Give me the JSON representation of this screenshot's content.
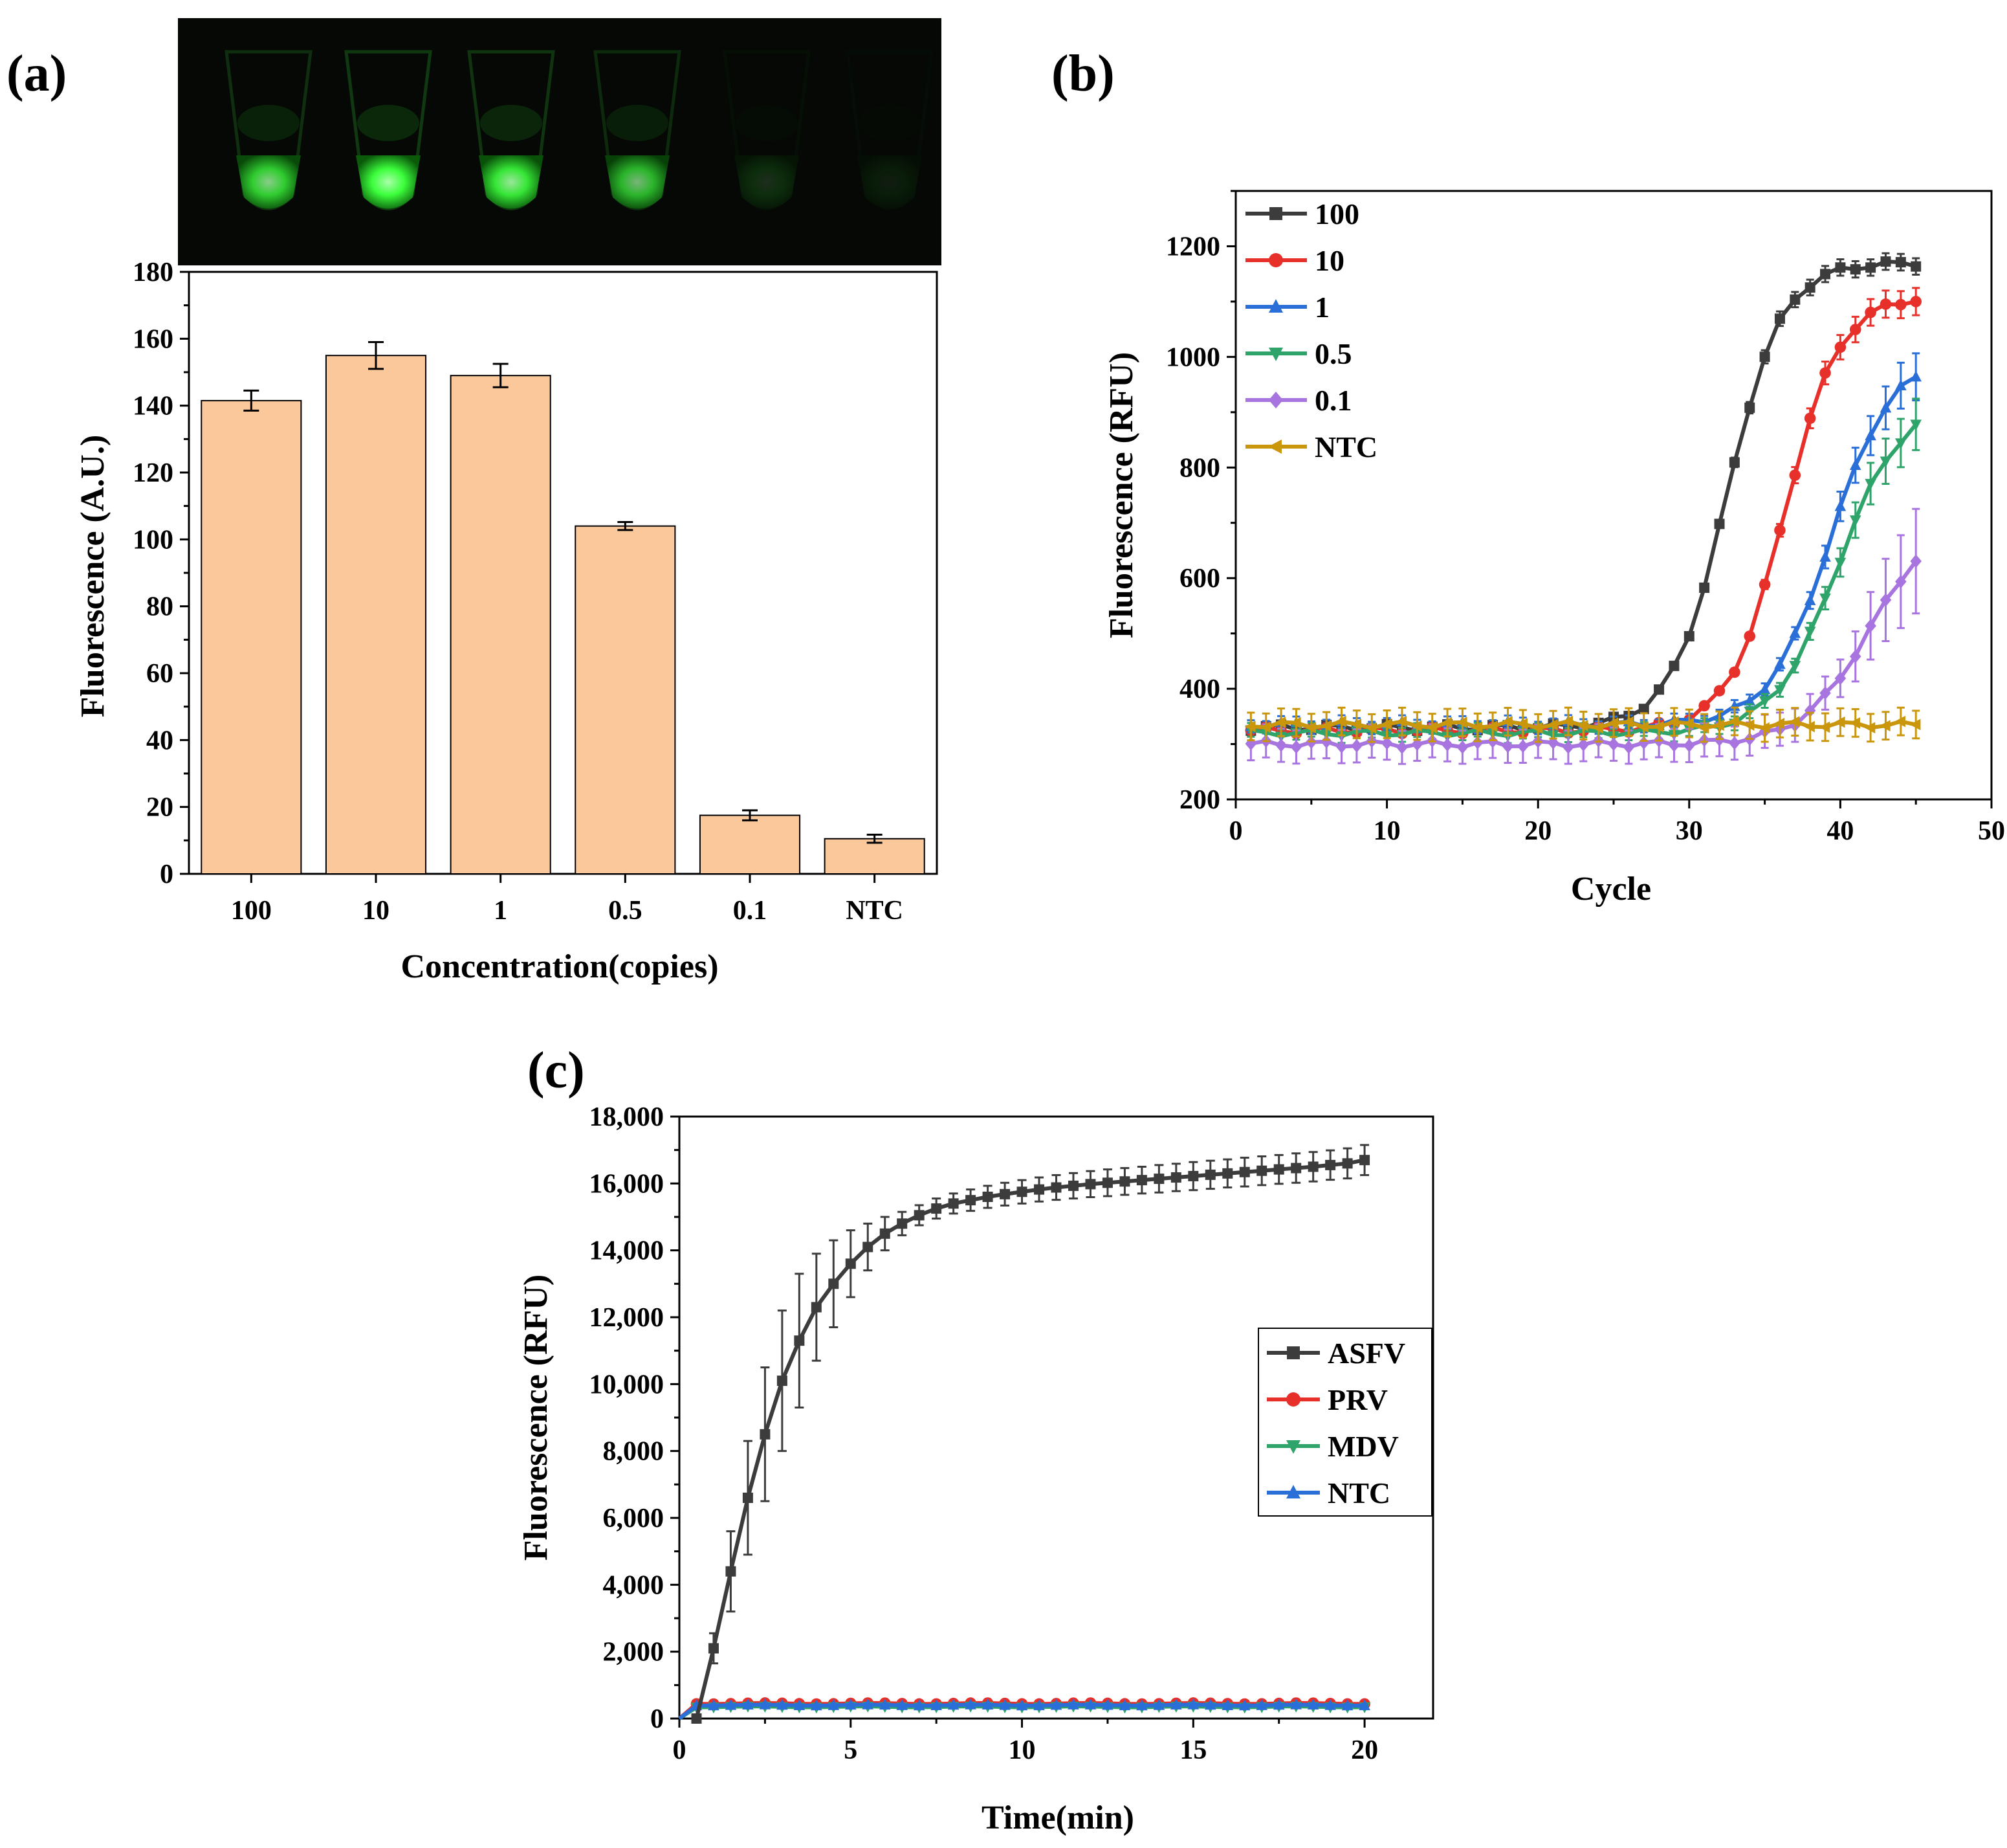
{
  "colors": {
    "bar_fill": "#fac89b",
    "s100": "#3c3c3c",
    "s10": "#e8302a",
    "s1": "#2a6fd8",
    "s05": "#2fa46a",
    "s01": "#a874e0",
    "sNTC": "#c9960c",
    "tube_glow": "#3cff3c"
  },
  "chart_data": [
    {
      "panel": "(a)",
      "type": "bar",
      "inset_image": "fluorescence-tubes-photo",
      "tube_brightness": [
        0.8,
        1.0,
        0.9,
        0.7,
        0.15,
        0.06
      ],
      "categories": [
        "100",
        "10",
        "1",
        "0.5",
        "0.1",
        "NTC"
      ],
      "values": [
        141.5,
        155,
        149,
        104,
        17.5,
        10.5
      ],
      "errors": [
        3,
        4,
        3.5,
        1.2,
        1.5,
        1.2
      ],
      "xlabel": "Concentration(copies)",
      "ylabel": "Fluorescence (A.U.)",
      "ylim": [
        0,
        180
      ],
      "yticks": [
        "0",
        "20",
        "40",
        "60",
        "80",
        "100",
        "120",
        "140",
        "160",
        "180"
      ]
    },
    {
      "panel": "(b)",
      "type": "line",
      "xlabel": "Cycle",
      "ylabel": "Fluorescence (RFU)",
      "xlim": [
        0,
        50
      ],
      "ylim": [
        200,
        1300
      ],
      "xticks": [
        "0",
        "10",
        "20",
        "30",
        "40",
        "50"
      ],
      "yticks": [
        "200",
        "400",
        "600",
        "800",
        "1000",
        "1200"
      ],
      "legend_position": "top-left",
      "series": [
        {
          "name": "100",
          "color_key": "s100",
          "marker": "square",
          "baseline": 330,
          "plateau": 1170,
          "midpoint": 32.5,
          "steepness": 0.55,
          "error": 15
        },
        {
          "name": "10",
          "color_key": "s10",
          "marker": "circle",
          "baseline": 325,
          "plateau": 1110,
          "midpoint": 36.3,
          "steepness": 0.55,
          "error": 25
        },
        {
          "name": "1",
          "color_key": "s1",
          "marker": "triangle-up",
          "baseline": 335,
          "plateau": 1000,
          "midpoint": 39.3,
          "steepness": 0.5,
          "error": 45
        },
        {
          "name": "0.5",
          "color_key": "s05",
          "marker": "triangle-down",
          "baseline": 320,
          "plateau": 920,
          "midpoint": 39.8,
          "steepness": 0.48,
          "error": 50
        },
        {
          "name": "0.1",
          "color_key": "s01",
          "marker": "diamond",
          "baseline": 300,
          "plateau": 720,
          "midpoint": 42.0,
          "steepness": 0.45,
          "error": 120
        },
        {
          "name": "NTC",
          "color_key": "sNTC",
          "marker": "triangle-left",
          "baseline": 335,
          "plateau": 335,
          "midpoint": 40,
          "steepness": 0.5,
          "error": 25
        }
      ]
    },
    {
      "panel": "(c)",
      "type": "line",
      "xlabel": "Time(min)",
      "ylabel": "Fluorescence (RFU)",
      "xlim": [
        0,
        22
      ],
      "ylim": [
        0,
        18000
      ],
      "xticks": [
        "0",
        "5",
        "10",
        "15",
        "20"
      ],
      "yticks": [
        "0",
        "2,000",
        "4,000",
        "6,000",
        "8,000",
        "10,000",
        "12,000",
        "14,000",
        "16,000",
        "18,000"
      ],
      "legend_position": "center-right",
      "series": [
        {
          "name": "ASFV",
          "color_key": "s100",
          "marker": "square",
          "t": [
            0.5,
            1,
            1.5,
            2,
            2.5,
            3,
            3.5,
            4,
            4.5,
            5,
            5.5,
            6,
            6.5,
            7,
            7.5,
            8,
            8.5,
            9,
            9.5,
            10,
            10.5,
            11,
            11.5,
            12,
            12.5,
            13,
            13.5,
            14,
            14.5,
            15,
            15.5,
            16,
            16.5,
            17,
            17.5,
            18,
            18.5,
            19,
            19.5,
            20
          ],
          "values": [
            0,
            2100,
            4400,
            6600,
            8500,
            10100,
            11300,
            12300,
            13000,
            13600,
            14100,
            14500,
            14800,
            15050,
            15250,
            15400,
            15500,
            15600,
            15680,
            15750,
            15820,
            15880,
            15930,
            15980,
            16020,
            16060,
            16100,
            16140,
            16180,
            16220,
            16260,
            16300,
            16340,
            16380,
            16420,
            16460,
            16500,
            16550,
            16600,
            16700
          ],
          "errors": [
            100,
            450,
            1200,
            1700,
            2000,
            2100,
            2000,
            1600,
            1300,
            1000,
            700,
            500,
            350,
            300,
            300,
            300,
            320,
            330,
            340,
            350,
            360,
            370,
            380,
            390,
            400,
            400,
            400,
            410,
            410,
            420,
            420,
            420,
            430,
            430,
            430,
            440,
            440,
            440,
            450,
            450
          ]
        },
        {
          "name": "PRV",
          "color_key": "s10",
          "marker": "circle",
          "level": 450,
          "error": 40
        },
        {
          "name": "MDV",
          "color_key": "s05",
          "marker": "triangle-down",
          "level": 350,
          "error": 40
        },
        {
          "name": "NTC",
          "color_key": "s1",
          "marker": "triangle-up",
          "level": 400,
          "error": 40
        }
      ]
    }
  ]
}
